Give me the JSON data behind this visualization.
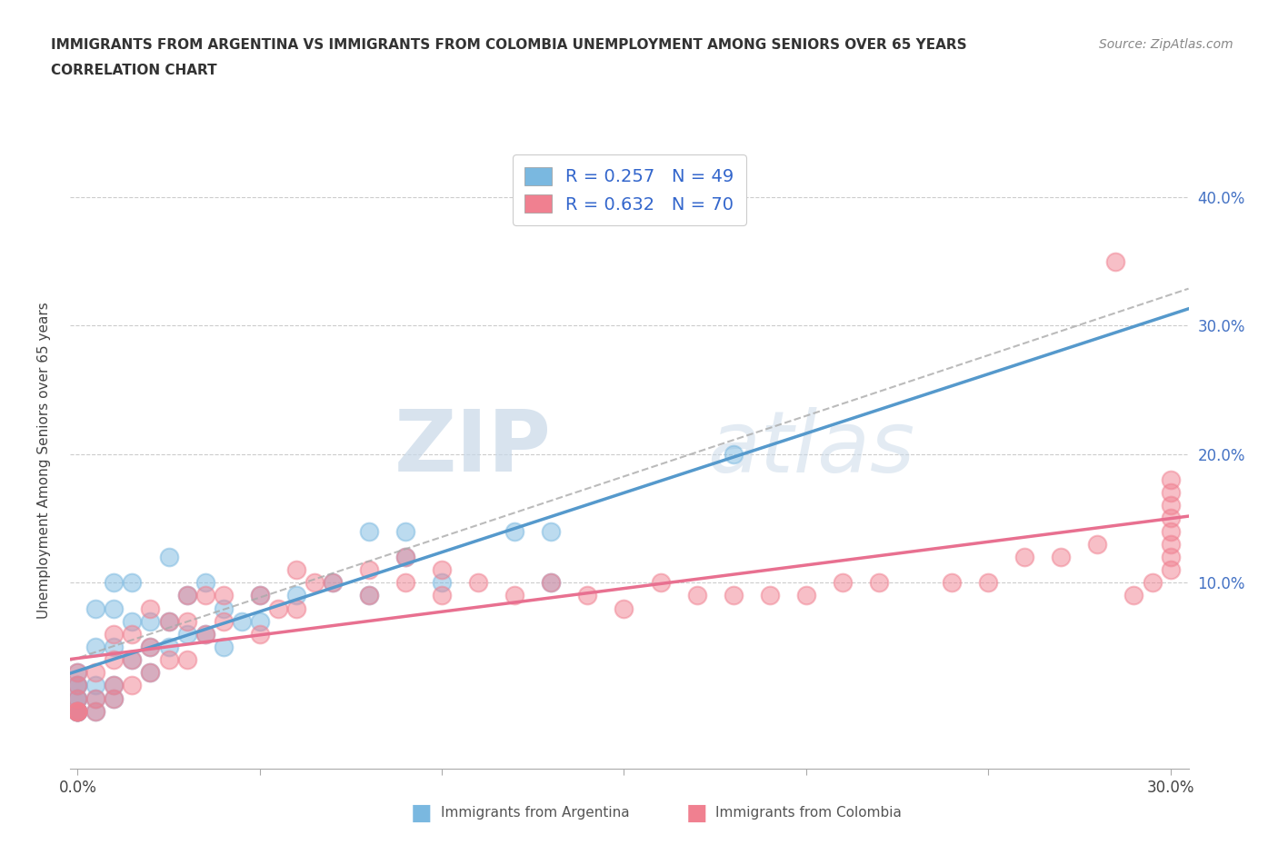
{
  "title_line1": "IMMIGRANTS FROM ARGENTINA VS IMMIGRANTS FROM COLOMBIA UNEMPLOYMENT AMONG SENIORS OVER 65 YEARS",
  "title_line2": "CORRELATION CHART",
  "source": "Source: ZipAtlas.com",
  "ylabel": "Unemployment Among Seniors over 65 years",
  "xlim": [
    -0.002,
    0.305
  ],
  "ylim": [
    -0.045,
    0.435
  ],
  "argentina_color": "#7ab8e0",
  "colombia_color": "#f08090",
  "argentina_R": 0.257,
  "argentina_N": 49,
  "colombia_R": 0.632,
  "colombia_N": 70,
  "watermark_zip": "ZIP",
  "watermark_atlas": "atlas",
  "argentina_scatter_x": [
    0.0,
    0.0,
    0.0,
    0.0,
    0.0,
    0.0,
    0.0,
    0.0,
    0.0,
    0.0,
    0.005,
    0.005,
    0.005,
    0.005,
    0.005,
    0.01,
    0.01,
    0.01,
    0.01,
    0.01,
    0.015,
    0.015,
    0.015,
    0.02,
    0.02,
    0.02,
    0.025,
    0.025,
    0.025,
    0.03,
    0.03,
    0.035,
    0.035,
    0.04,
    0.04,
    0.045,
    0.05,
    0.05,
    0.06,
    0.07,
    0.08,
    0.08,
    0.09,
    0.09,
    0.1,
    0.12,
    0.13,
    0.13,
    0.18
  ],
  "argentina_scatter_y": [
    0.0,
    0.0,
    0.0,
    0.0,
    0.0,
    0.01,
    0.01,
    0.02,
    0.02,
    0.03,
    0.0,
    0.01,
    0.02,
    0.05,
    0.08,
    0.01,
    0.02,
    0.05,
    0.08,
    0.1,
    0.04,
    0.07,
    0.1,
    0.03,
    0.05,
    0.07,
    0.05,
    0.07,
    0.12,
    0.06,
    0.09,
    0.06,
    0.1,
    0.05,
    0.08,
    0.07,
    0.07,
    0.09,
    0.09,
    0.1,
    0.09,
    0.14,
    0.12,
    0.14,
    0.1,
    0.14,
    0.1,
    0.14,
    0.2
  ],
  "colombia_scatter_x": [
    0.0,
    0.0,
    0.0,
    0.0,
    0.0,
    0.0,
    0.0,
    0.005,
    0.005,
    0.005,
    0.01,
    0.01,
    0.01,
    0.01,
    0.015,
    0.015,
    0.015,
    0.02,
    0.02,
    0.02,
    0.025,
    0.025,
    0.03,
    0.03,
    0.03,
    0.035,
    0.035,
    0.04,
    0.04,
    0.05,
    0.05,
    0.055,
    0.06,
    0.06,
    0.065,
    0.07,
    0.08,
    0.08,
    0.09,
    0.09,
    0.1,
    0.1,
    0.11,
    0.12,
    0.13,
    0.14,
    0.15,
    0.16,
    0.17,
    0.18,
    0.19,
    0.2,
    0.21,
    0.22,
    0.24,
    0.25,
    0.26,
    0.27,
    0.28,
    0.285,
    0.29,
    0.295,
    0.3,
    0.3,
    0.3,
    0.3,
    0.3,
    0.3,
    0.3,
    0.3
  ],
  "colombia_scatter_y": [
    0.0,
    0.0,
    0.0,
    0.0,
    0.01,
    0.02,
    0.03,
    0.0,
    0.01,
    0.03,
    0.01,
    0.02,
    0.04,
    0.06,
    0.02,
    0.04,
    0.06,
    0.03,
    0.05,
    0.08,
    0.04,
    0.07,
    0.04,
    0.07,
    0.09,
    0.06,
    0.09,
    0.07,
    0.09,
    0.06,
    0.09,
    0.08,
    0.08,
    0.11,
    0.1,
    0.1,
    0.09,
    0.11,
    0.1,
    0.12,
    0.09,
    0.11,
    0.1,
    0.09,
    0.1,
    0.09,
    0.08,
    0.1,
    0.09,
    0.09,
    0.09,
    0.09,
    0.1,
    0.1,
    0.1,
    0.1,
    0.12,
    0.12,
    0.13,
    0.35,
    0.09,
    0.1,
    0.11,
    0.12,
    0.13,
    0.14,
    0.15,
    0.16,
    0.17,
    0.18
  ]
}
